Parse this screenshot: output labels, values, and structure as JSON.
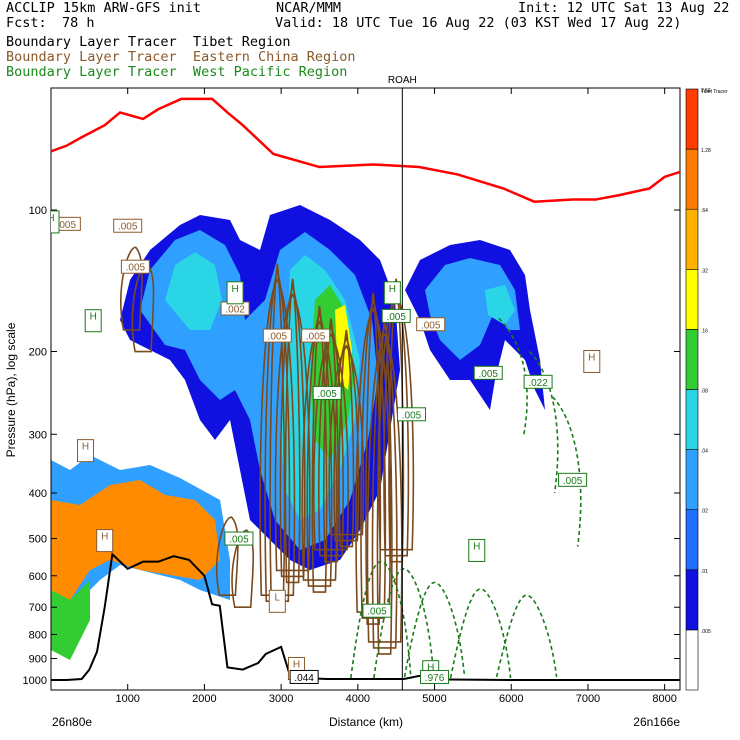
{
  "header": {
    "model": "ACCLIP 15km ARW-GFS init",
    "fcst_label": "Fcst:",
    "fcst_value": "78 h",
    "center": "NCAR/MMM",
    "init": "Init: 12 UTC Sat 13 Aug 22",
    "valid": "Valid: 18 UTC Tue 16 Aug 22 (03 KST Wed 17 Aug 22)"
  },
  "legend": [
    {
      "name": "Boundary Layer Tracer  Tibet Region",
      "color": "#000000"
    },
    {
      "name": "Boundary Layer Tracer  Eastern China Region",
      "color": "#8b5a2b"
    },
    {
      "name": "Boundary Layer Tracer  West Pacific Region",
      "color": "#1a8a1a"
    }
  ],
  "colors": {
    "tropopause": "#ff0000",
    "terrain": "#000000",
    "eastern_china": "#7a4a1e",
    "west_pacific": "#1a7a1a",
    "colorbar": [
      "#ffffff",
      "#1010e0",
      "#1f6fff",
      "#2fa0ff",
      "#2ad6e6",
      "#33cc33",
      "#ffff00",
      "#ffb000",
      "#ff7a00",
      "#ff3d00"
    ]
  },
  "chart_data": {
    "type": "heatmap",
    "xlabel": "Distance (km)",
    "ylabel": "Pressure (hPa), log scale",
    "xlim": [
      0,
      8200
    ],
    "ylim": [
      1050,
      55
    ],
    "x_ticks": [
      "1000",
      "2000",
      "3000",
      "4000",
      "5000",
      "6000",
      "7000",
      "8000"
    ],
    "x_tick_values": [
      1000,
      2000,
      3000,
      4000,
      5000,
      6000,
      7000,
      8000
    ],
    "y_ticks": [
      "100",
      "200",
      "300",
      "400",
      "500",
      "600",
      "700",
      "800",
      "900",
      "1000"
    ],
    "y_tick_values": [
      100,
      200,
      300,
      400,
      500,
      600,
      700,
      800,
      900,
      1000
    ],
    "left_endpoint": "26n80e",
    "right_endpoint": "26n166e",
    "vertical_marker": {
      "label": "ROAH",
      "x": 4580
    },
    "colorbar_labels": [
      ".005",
      ".01",
      ".02",
      ".04",
      ".08",
      ".16",
      ".32",
      ".64",
      "1.28",
      "2.56"
    ],
    "colorbar_top_label": "Tibet Tracer",
    "tropopause": {
      "x": [
        0,
        200,
        400,
        700,
        900,
        1200,
        1400,
        1700,
        2100,
        2300,
        2500,
        2900,
        3500,
        4200,
        4800,
        5300,
        5900,
        6300,
        6800,
        7100,
        7400,
        7800,
        8000,
        8200
      ],
      "p": [
        75,
        73,
        70,
        66,
        62,
        64,
        61,
        58,
        58,
        62,
        66,
        76,
        81,
        80,
        81,
        84,
        90,
        96,
        95,
        95,
        93,
        90,
        85,
        83
      ]
    },
    "terrain": {
      "x": [
        0,
        200,
        400,
        500,
        600,
        700,
        800,
        1000,
        1200,
        1400,
        1600,
        1800,
        2000,
        2100,
        2200,
        2300,
        2500,
        2700,
        2800,
        3000,
        3100,
        3200,
        3400,
        3600,
        4600,
        4800,
        5000,
        6000,
        7000,
        8200
      ],
      "p": [
        1000,
        1000,
        995,
        950,
        870,
        700,
        540,
        580,
        560,
        560,
        545,
        555,
        600,
        690,
        695,
        940,
        950,
        920,
        880,
        850,
        960,
        990,
        992,
        995,
        995,
        980,
        997,
        1000,
        1000,
        1000
      ]
    },
    "labels": [
      {
        "text": ".005",
        "x": 200,
        "p": 107,
        "color": "#8b5a2b"
      },
      {
        "text": ".005",
        "x": 1000,
        "p": 108,
        "color": "#8b5a2b"
      },
      {
        "text": ".005",
        "x": 2950,
        "p": 185,
        "color": "#8b5a2b"
      },
      {
        "text": ".005",
        "x": 3450,
        "p": 185,
        "color": "#8b5a2b"
      },
      {
        "text": ".005",
        "x": 3600,
        "p": 245,
        "color": "#1a7a1a"
      },
      {
        "text": ".005",
        "x": 4500,
        "p": 168,
        "color": "#1a7a1a"
      },
      {
        "text": ".005",
        "x": 4950,
        "p": 175,
        "color": "#8b5a2b"
      },
      {
        "text": ".005",
        "x": 2450,
        "p": 500,
        "color": "#1a7a1a"
      },
      {
        "text": ".005",
        "x": 4250,
        "p": 712,
        "color": "#1a7a1a"
      },
      {
        "text": ".005",
        "x": 5700,
        "p": 222,
        "color": "#1a7a1a"
      },
      {
        "text": ".005",
        "x": 6800,
        "p": 375,
        "color": "#1a7a1a"
      },
      {
        "text": ".022",
        "x": 6350,
        "p": 232,
        "color": "#1a7a1a"
      },
      {
        "text": ".002",
        "x": 2400,
        "p": 162,
        "color": "#8b5a2b"
      },
      {
        "text": ".005",
        "x": 1100,
        "p": 132,
        "color": "#8b5a2b"
      },
      {
        "text": ".005",
        "x": 4700,
        "p": 272,
        "color": "#1a7a1a"
      },
      {
        "text": "H",
        "x": 2400,
        "p": 150,
        "color": "#1a7a1a"
      },
      {
        "text": "H",
        "x": 4450,
        "p": 150,
        "color": "#1a7a1a"
      },
      {
        "text": "H",
        "x": 550,
        "p": 172,
        "color": "#1a7a1a"
      },
      {
        "text": "H",
        "x": 0,
        "p": 106,
        "color": "#1a7a1a"
      },
      {
        "text": "H",
        "x": 450,
        "p": 325,
        "color": "#8b5a2b"
      },
      {
        "text": "H",
        "x": 700,
        "p": 505,
        "color": "#8b5a2b"
      },
      {
        "text": "L",
        "x": 2950,
        "p": 680,
        "color": "#8b5a2b"
      },
      {
        "text": "H",
        "x": 5550,
        "p": 530,
        "color": "#1a7a1a"
      },
      {
        "text": "H",
        "x": 7050,
        "p": 210,
        "color": "#8b5a2b"
      },
      {
        "text": "H",
        "x": 3200,
        "p": 945,
        "color": "#8b5a2b"
      },
      {
        "text": "H",
        "x": 4950,
        "p": 960,
        "color": "#1a7a1a"
      },
      {
        "text": ".044",
        "x": 3300,
        "p": 985,
        "color": "#000000"
      },
      {
        "text": ".976",
        "x": 5000,
        "p": 985,
        "color": "#1a7a1a"
      }
    ]
  }
}
